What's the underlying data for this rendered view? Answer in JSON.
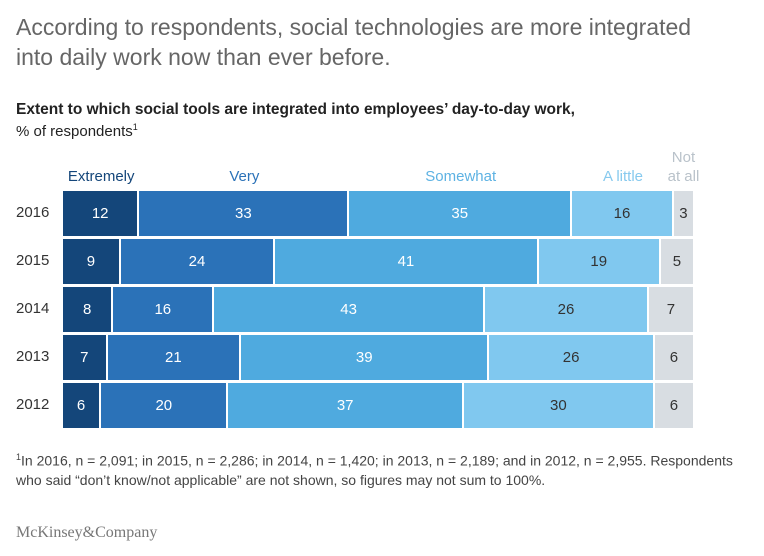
{
  "headline": "According to respondents, social technologies are more integrated into daily work now than ever before.",
  "chart_data": {
    "type": "bar",
    "orientation": "horizontal",
    "stacked": true,
    "title": "Extent to which social tools are integrated into employees’ day-to-day work,",
    "unit_label": "% of respondents",
    "unit_footnote_marker": "1",
    "categories": [
      "2016",
      "2015",
      "2014",
      "2013",
      "2012"
    ],
    "series": [
      {
        "name": "Extremely",
        "color": "#14467a",
        "text_color": "#ffffff",
        "values": [
          12,
          9,
          8,
          7,
          6
        ]
      },
      {
        "name": "Very",
        "color": "#2b72b8",
        "text_color": "#ffffff",
        "values": [
          33,
          24,
          16,
          21,
          20
        ]
      },
      {
        "name": "Somewhat",
        "color": "#4faadf",
        "text_color": "#ffffff",
        "values": [
          35,
          41,
          43,
          39,
          37
        ]
      },
      {
        "name": "A little",
        "color": "#80c8ef",
        "text_color": "#333333",
        "values": [
          16,
          19,
          26,
          26,
          30
        ]
      },
      {
        "name": "Not at all",
        "color": "#d8dde2",
        "text_color": "#333333",
        "values": [
          3,
          5,
          7,
          6,
          6
        ]
      }
    ],
    "legend_colors": [
      "#14467a",
      "#2b72b8",
      "#5db2e3",
      "#86c9ee",
      "#b9c2ca"
    ],
    "legend_placement": "top, over segments",
    "grid": false
  },
  "footnote": {
    "marker": "1",
    "text": "In 2016, n = 2,091; in 2015, n = 2,286; in 2014, n = 1,420; in 2013, n = 2,189; and in 2012, n = 2,955. Respondents who said “don’t know/not applicable” are not shown, so figures may not sum to 100%."
  },
  "logo": "McKinsey&Company"
}
